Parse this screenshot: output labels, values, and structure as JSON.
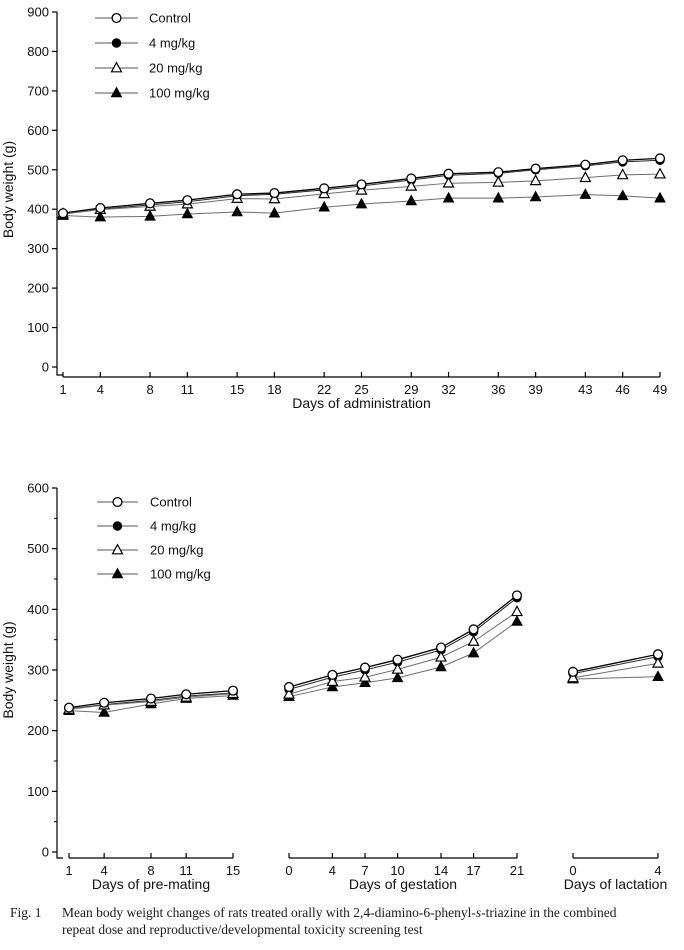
{
  "figure": {
    "fig_label": "Fig. 1",
    "caption_line1_pre": "Mean body weight changes of rats treated orally with 2,4-diamino-6-phenyl-",
    "caption_italic": "s",
    "caption_line1_post": "-triazine in the combined",
    "caption_line2": "repeat dose and reproductive/developmental toxicity screening test"
  },
  "colors": {
    "ink": "#000000",
    "open_marker_fill": "#ffffff",
    "secondary_line": "#6e6e6e",
    "background": "#ffffff"
  },
  "chart_data": [
    {
      "type": "line",
      "title": "",
      "ylabel": "Body weight (g)",
      "xlabel": "Days of administration",
      "ylim": [
        0,
        900
      ],
      "ytick_step": 100,
      "grid": false,
      "legend_position": "top-left",
      "legend": [
        {
          "label": "Control",
          "marker": "open-circle"
        },
        {
          "label": "4 mg/kg",
          "marker": "filled-circle"
        },
        {
          "label": "20 mg/kg",
          "marker": "open-triangle"
        },
        {
          "label": "100 mg/kg",
          "marker": "filled-triangle"
        }
      ],
      "x": [
        1,
        4,
        8,
        11,
        15,
        18,
        22,
        25,
        29,
        32,
        36,
        39,
        43,
        46,
        49
      ],
      "series": [
        {
          "name": "Control",
          "marker": "open-circle",
          "values": [
            390,
            403,
            415,
            423,
            438,
            441,
            453,
            463,
            478,
            490,
            494,
            503,
            513,
            524,
            529
          ]
        },
        {
          "name": "4 mg/kg",
          "marker": "filled-circle",
          "values": [
            388,
            400,
            411,
            419,
            434,
            438,
            449,
            459,
            474,
            486,
            491,
            500,
            510,
            520,
            524
          ]
        },
        {
          "name": "20 mg/kg",
          "marker": "open-triangle",
          "values": [
            388,
            399,
            407,
            413,
            427,
            426,
            439,
            448,
            458,
            466,
            468,
            472,
            480,
            487,
            489
          ]
        },
        {
          "name": "100 mg/kg",
          "marker": "filled-triangle",
          "values": [
            384,
            380,
            382,
            388,
            393,
            390,
            405,
            413,
            421,
            428,
            428,
            431,
            437,
            434,
            428
          ]
        }
      ]
    },
    {
      "type": "line",
      "title": "",
      "ylabel": "Body weight (g)",
      "ylim": [
        0,
        600
      ],
      "ytick_step": 100,
      "ytick_minor_step": 50,
      "grid": false,
      "legend_position": "top-left",
      "legend": [
        {
          "label": "Control",
          "marker": "open-circle"
        },
        {
          "label": "4 mg/kg",
          "marker": "filled-circle"
        },
        {
          "label": "20 mg/kg",
          "marker": "open-triangle"
        },
        {
          "label": "100 mg/kg",
          "marker": "filled-triangle"
        }
      ],
      "segments": [
        {
          "xlabel": "Days of pre-mating",
          "x": [
            1,
            4,
            8,
            11,
            15
          ],
          "series": [
            {
              "name": "Control",
              "marker": "open-circle",
              "values": [
                238,
                246,
                253,
                260,
                266
              ]
            },
            {
              "name": "4 mg/kg",
              "marker": "filled-circle",
              "values": [
                236,
                243,
                250,
                257,
                262
              ]
            },
            {
              "name": "20 mg/kg",
              "marker": "open-triangle",
              "values": [
                235,
                242,
                248,
                255,
                261
              ]
            },
            {
              "name": "100 mg/kg",
              "marker": "filled-triangle",
              "values": [
                233,
                230,
                244,
                253,
                258
              ]
            }
          ]
        },
        {
          "xlabel": "Days of gestation",
          "x": [
            0,
            4,
            7,
            10,
            14,
            17,
            21
          ],
          "series": [
            {
              "name": "Control",
              "marker": "open-circle",
              "values": [
                272,
                292,
                304,
                317,
                337,
                367,
                423
              ]
            },
            {
              "name": "4 mg/kg",
              "marker": "filled-circle",
              "values": [
                268,
                288,
                300,
                313,
                333,
                363,
                419
              ]
            },
            {
              "name": "20 mg/kg",
              "marker": "open-triangle",
              "values": [
                260,
                281,
                288,
                301,
                321,
                347,
                396
              ]
            },
            {
              "name": "100 mg/kg",
              "marker": "filled-triangle",
              "values": [
                256,
                272,
                279,
                287,
                305,
                328,
                380
              ]
            }
          ]
        },
        {
          "xlabel": "Days of lactation",
          "x": [
            0,
            4
          ],
          "series": [
            {
              "name": "Control",
              "marker": "open-circle",
              "values": [
                297,
                326
              ]
            },
            {
              "name": "4 mg/kg",
              "marker": "filled-circle",
              "values": [
                294,
                322
              ]
            },
            {
              "name": "20 mg/kg",
              "marker": "open-triangle",
              "values": [
                287,
                311
              ]
            },
            {
              "name": "100 mg/kg",
              "marker": "filled-triangle",
              "values": [
                285,
                289
              ]
            }
          ]
        }
      ]
    }
  ]
}
